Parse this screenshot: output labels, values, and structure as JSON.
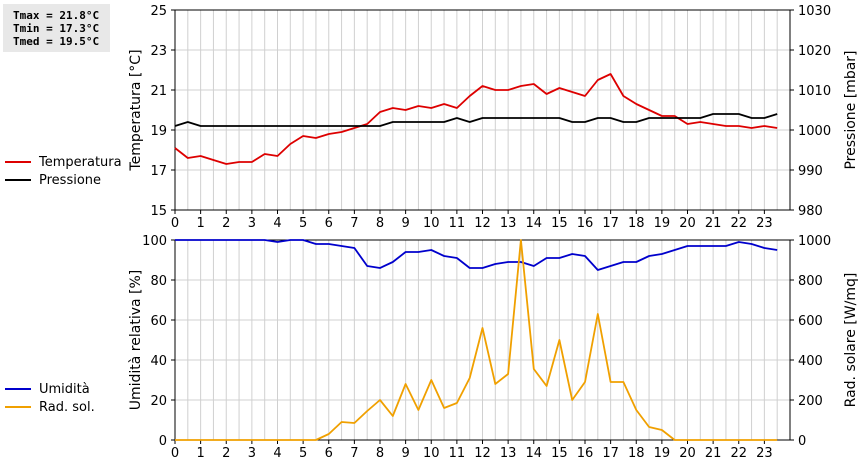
{
  "stats": {
    "tmax": "Tmax = 21.8°C",
    "tmin": "Tmin = 17.3°C",
    "tmed": "Tmed = 19.5°C"
  },
  "colors": {
    "temperatura": "#dd0000",
    "pressione": "#000000",
    "umidita": "#0000cc",
    "rad_sol": "#f0a000",
    "grid": "#d0d0d0"
  },
  "chart_data": [
    {
      "type": "line",
      "legend": [
        "Temperatura",
        "Pressione"
      ],
      "legend_placement": "left",
      "ylabel": "Temperatura [°C]",
      "y2label": "Pressione [mbar]",
      "ylim": [
        15,
        25
      ],
      "y2lim": [
        980,
        1030
      ],
      "yticks": [
        15,
        17,
        19,
        21,
        23,
        25
      ],
      "y2ticks": [
        980,
        990,
        1000,
        1010,
        1020,
        1030
      ],
      "xlim": [
        0,
        24
      ],
      "xticks": [
        0,
        1,
        2,
        3,
        4,
        5,
        6,
        7,
        8,
        9,
        10,
        11,
        12,
        13,
        14,
        15,
        16,
        17,
        18,
        19,
        20,
        21,
        22,
        23
      ],
      "grid": true,
      "series": [
        {
          "name": "Temperatura",
          "axis": "left",
          "x": [
            0,
            0.5,
            1,
            1.5,
            2,
            2.5,
            3,
            3.5,
            4,
            4.5,
            5,
            5.5,
            6,
            6.5,
            7,
            7.5,
            8,
            8.5,
            9,
            9.5,
            10,
            10.5,
            11,
            11.5,
            12,
            12.5,
            13,
            13.5,
            14,
            14.5,
            15,
            15.5,
            16,
            16.5,
            17,
            17.5,
            18,
            18.5,
            19,
            19.5,
            20,
            20.5,
            21,
            21.5,
            22,
            22.5,
            23,
            23.5
          ],
          "y": [
            18.1,
            17.6,
            17.7,
            17.5,
            17.3,
            17.4,
            17.4,
            17.8,
            17.7,
            18.3,
            18.7,
            18.6,
            18.8,
            18.9,
            19.1,
            19.3,
            19.9,
            20.1,
            20.0,
            20.2,
            20.1,
            20.3,
            20.1,
            20.7,
            21.2,
            21.0,
            21.0,
            21.2,
            21.3,
            20.8,
            21.1,
            20.9,
            20.7,
            21.5,
            21.8,
            20.7,
            20.3,
            20.0,
            19.7,
            19.7,
            19.3,
            19.4,
            19.3,
            19.2,
            19.2,
            19.1,
            19.2,
            19.1
          ]
        },
        {
          "name": "Pressione",
          "axis": "right",
          "x": [
            0,
            0.5,
            1,
            1.5,
            2,
            2.5,
            3,
            3.5,
            4,
            4.5,
            5,
            5.5,
            6,
            6.5,
            7,
            7.5,
            8,
            8.5,
            9,
            9.5,
            10,
            10.5,
            11,
            11.5,
            12,
            12.5,
            13,
            13.5,
            14,
            14.5,
            15,
            15.5,
            16,
            16.5,
            17,
            17.5,
            18,
            18.5,
            19,
            19.5,
            20,
            20.5,
            21,
            21.5,
            22,
            22.5,
            23,
            23.5
          ],
          "y": [
            1001,
            1002,
            1001,
            1001,
            1001,
            1001,
            1001,
            1001,
            1001,
            1001,
            1001,
            1001,
            1001,
            1001,
            1001,
            1001,
            1001,
            1002,
            1002,
            1002,
            1002,
            1002,
            1003,
            1002,
            1003,
            1003,
            1003,
            1003,
            1003,
            1003,
            1003,
            1002,
            1002,
            1003,
            1003,
            1002,
            1002,
            1003,
            1003,
            1003,
            1003,
            1003,
            1004,
            1004,
            1004,
            1003,
            1003,
            1004
          ]
        }
      ]
    },
    {
      "type": "line",
      "legend": [
        "Umidità",
        "Rad. sol."
      ],
      "legend_placement": "left",
      "ylabel": "Umidità relativa [%]",
      "y2label": "Rad. solare [W/mq]",
      "ylim": [
        0,
        100
      ],
      "y2lim": [
        0,
        1000
      ],
      "yticks": [
        0,
        20,
        40,
        60,
        80,
        100
      ],
      "y2ticks": [
        0,
        200,
        400,
        600,
        800,
        1000
      ],
      "xlim": [
        0,
        24
      ],
      "xticks": [
        0,
        1,
        2,
        3,
        4,
        5,
        6,
        7,
        8,
        9,
        10,
        11,
        12,
        13,
        14,
        15,
        16,
        17,
        18,
        19,
        20,
        21,
        22,
        23
      ],
      "grid": true,
      "series": [
        {
          "name": "Umidità",
          "axis": "left",
          "x": [
            0,
            0.5,
            1,
            1.5,
            2,
            2.5,
            3,
            3.5,
            4,
            4.5,
            5,
            5.5,
            6,
            6.5,
            7,
            7.5,
            8,
            8.5,
            9,
            9.5,
            10,
            10.5,
            11,
            11.5,
            12,
            12.5,
            13,
            13.5,
            14,
            14.5,
            15,
            15.5,
            16,
            16.5,
            17,
            17.5,
            18,
            18.5,
            19,
            19.5,
            20,
            20.5,
            21,
            21.5,
            22,
            22.5,
            23,
            23.5
          ],
          "y": [
            100,
            100,
            100,
            100,
            100,
            100,
            100,
            100,
            99,
            100,
            100,
            98,
            98,
            97,
            96,
            87,
            86,
            89,
            94,
            94,
            95,
            92,
            91,
            86,
            86,
            88,
            89,
            89,
            87,
            91,
            91,
            93,
            92,
            85,
            87,
            89,
            89,
            92,
            93,
            95,
            97,
            97,
            97,
            97,
            99,
            98,
            96,
            95
          ]
        },
        {
          "name": "Rad. sol.",
          "axis": "right",
          "x": [
            0,
            0.5,
            1,
            1.5,
            2,
            2.5,
            3,
            3.5,
            4,
            4.5,
            5,
            5.5,
            6,
            6.5,
            7,
            7.5,
            8,
            8.5,
            9,
            9.5,
            10,
            10.5,
            11,
            11.5,
            12,
            12.5,
            13,
            13.5,
            14,
            14.5,
            15,
            15.5,
            16,
            16.5,
            17,
            17.5,
            18,
            18.5,
            19,
            19.5,
            20,
            20.5,
            21,
            21.5,
            22,
            22.5,
            23,
            23.5
          ],
          "y": [
            0,
            0,
            0,
            0,
            0,
            0,
            0,
            0,
            0,
            0,
            0,
            0,
            30,
            90,
            85,
            145,
            200,
            120,
            280,
            150,
            300,
            160,
            185,
            310,
            560,
            280,
            330,
            1010,
            355,
            270,
            500,
            200,
            290,
            630,
            290,
            290,
            150,
            65,
            50,
            0,
            0,
            0,
            0,
            0,
            0,
            0,
            0,
            0
          ]
        }
      ]
    }
  ]
}
